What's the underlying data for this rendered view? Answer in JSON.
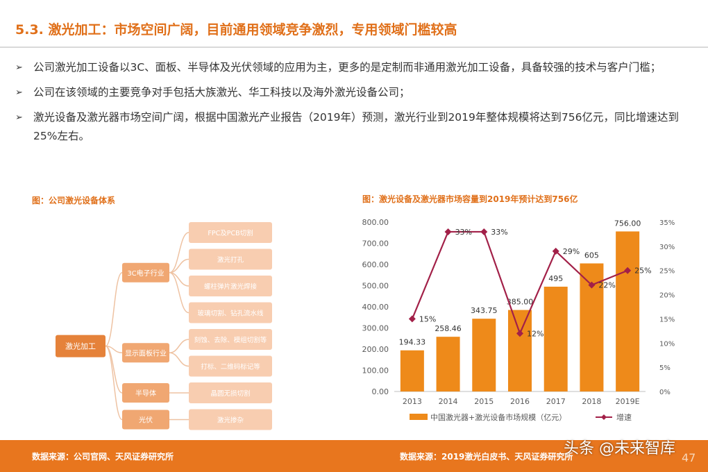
{
  "title": "5.3. 激光加工：市场空间广阔，目前通用领域竞争激烈，专用领域门槛较高",
  "bullets": [
    "公司激光加工设备以3C、面板、半导体及光伏领域的应用为主，更多的是定制而非通用激光加工设备，具备较强的技术与客户门槛；",
    "公司在该领域的主要竞争对手包括大族激光、华工科技以及海外激光设备公司；",
    "激光设备及激光器市场空间广阔，根据中国激光产业报告（2019年）预测，激光行业到2019年整体规模将达到756亿元，同比增速达到25%左右。"
  ],
  "bullet_mark": "➢",
  "tree": {
    "caption": "图：公司激光设备体系",
    "root": "激光加工",
    "groups": [
      {
        "label": "3C电子行业",
        "children": [
          "FPC及PCB切割",
          "激光打孔",
          "螺柱弹片激光焊接",
          "玻璃切割、钻孔流水线"
        ]
      },
      {
        "label": "显示面板行业",
        "children": [
          "刻蚀、去除、模组切割等",
          "打标、二维码标记等"
        ]
      },
      {
        "label": "半导体",
        "children": [
          "晶圆无损切割"
        ]
      },
      {
        "label": "光伏",
        "children": [
          "激光掺杂"
        ]
      }
    ],
    "colors": {
      "root": "#e5823a",
      "mid": "#f0a772",
      "leaf": "#f8cdb0",
      "line": "#eec2a2"
    }
  },
  "chart_caption": "图：激光设备及激光器市场容量到2019年预计达到756亿",
  "chart_data": {
    "type": "bar",
    "categories": [
      "2013",
      "2014",
      "2015",
      "2016",
      "2017",
      "2018",
      "2019E"
    ],
    "series": [
      {
        "name": "中国激光器+激光设备市场规模（亿元）",
        "type": "bar",
        "values": [
          194.33,
          258.46,
          343.75,
          385.0,
          495,
          605,
          756.0
        ],
        "labels": [
          "194.33",
          "258.46",
          "343.75",
          "385.00",
          "495",
          "605",
          "756.00"
        ],
        "color": "#ee8a1a"
      },
      {
        "name": "增速",
        "type": "line",
        "axis": "right",
        "values": [
          15,
          33,
          33,
          12,
          29,
          22,
          25
        ],
        "labels": [
          "15%",
          "33%",
          "33%",
          "12%",
          "29%",
          "22%",
          "25%"
        ],
        "color": "#a22048"
      }
    ],
    "ylim": [
      0,
      800
    ],
    "yticks": [
      "0.00",
      "100.00",
      "200.00",
      "300.00",
      "400.00",
      "500.00",
      "600.00",
      "700.00",
      "800.00"
    ],
    "y2lim": [
      0,
      35
    ],
    "y2ticks": [
      "0%",
      "5%",
      "10%",
      "15%",
      "20%",
      "25%",
      "30%",
      "35%"
    ],
    "grid": false,
    "legend": "bottom"
  },
  "footer": {
    "left": "数据来源：公司官网、天风证券研究所",
    "right": "数据来源：2019激光白皮书、天风证券研究所",
    "watermark": "头条 @未来智库",
    "page": "47"
  }
}
